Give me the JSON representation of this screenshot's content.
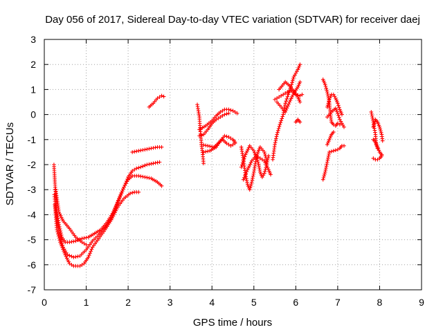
{
  "chart_data": {
    "type": "scatter",
    "title": "Day 056 of 2017, Sidereal Day-to-day VTEC variation (SDTVAR) for receiver daej",
    "xlabel": "GPS time / hours",
    "ylabel": "SDTVAR / TECUs",
    "xlim": [
      0,
      9
    ],
    "ylim": [
      -7,
      3
    ],
    "grid": true,
    "xticks": [
      "0",
      "1",
      "2",
      "3",
      "4",
      "5",
      "6",
      "7",
      "8",
      "9"
    ],
    "yticks": [
      "3",
      "2",
      "1",
      "0",
      "-1",
      "-2",
      "-3",
      "-4",
      "-5",
      "-6",
      "-7"
    ],
    "series": [
      {
        "name": "SDTVAR",
        "marker": "+",
        "color": "#ff0000",
        "segments": [
          [
            [
              0.23,
              -2.0
            ],
            [
              0.26,
              -2.9
            ],
            [
              0.3,
              -3.8
            ],
            [
              0.35,
              -4.4
            ],
            [
              0.42,
              -4.9
            ],
            [
              0.5,
              -5.1
            ],
            [
              0.6,
              -5.1
            ],
            [
              0.75,
              -5.05
            ],
            [
              0.9,
              -4.95
            ],
            [
              1.05,
              -4.9
            ],
            [
              1.2,
              -4.75
            ],
            [
              1.35,
              -4.6
            ],
            [
              1.5,
              -4.3
            ],
            [
              1.65,
              -3.9
            ],
            [
              1.8,
              -3.3
            ],
            [
              1.9,
              -2.9
            ],
            [
              2.0,
              -2.5
            ],
            [
              2.1,
              -2.25
            ],
            [
              2.2,
              -2.15
            ],
            [
              2.3,
              -2.1
            ],
            [
              2.45,
              -2.0
            ],
            [
              2.6,
              -1.95
            ],
            [
              2.75,
              -1.9
            ]
          ],
          [
            [
              0.24,
              -3.2
            ],
            [
              0.28,
              -3.9
            ],
            [
              0.35,
              -4.7
            ],
            [
              0.45,
              -5.3
            ],
            [
              0.55,
              -5.6
            ],
            [
              0.7,
              -5.7
            ],
            [
              0.85,
              -5.65
            ],
            [
              1.0,
              -5.4
            ],
            [
              1.15,
              -5.05
            ],
            [
              1.3,
              -4.8
            ],
            [
              1.45,
              -4.5
            ],
            [
              1.6,
              -4.1
            ],
            [
              1.75,
              -3.5
            ],
            [
              1.9,
              -2.9
            ],
            [
              2.0,
              -2.6
            ],
            [
              2.1,
              -2.45
            ],
            [
              2.25,
              -2.45
            ],
            [
              2.4,
              -2.5
            ],
            [
              2.55,
              -2.55
            ],
            [
              2.7,
              -2.7
            ],
            [
              2.8,
              -2.85
            ]
          ],
          [
            [
              0.25,
              -3.6
            ],
            [
              0.3,
              -4.6
            ],
            [
              0.38,
              -5.1
            ],
            [
              0.5,
              -5.6
            ],
            [
              0.6,
              -5.95
            ],
            [
              0.7,
              -6.05
            ],
            [
              0.85,
              -6.05
            ],
            [
              0.95,
              -5.95
            ],
            [
              1.05,
              -5.7
            ],
            [
              1.15,
              -5.3
            ],
            [
              1.3,
              -4.95
            ],
            [
              1.45,
              -4.6
            ],
            [
              1.6,
              -4.2
            ],
            [
              1.75,
              -3.7
            ],
            [
              1.9,
              -3.35
            ],
            [
              2.05,
              -3.15
            ],
            [
              2.15,
              -3.1
            ],
            [
              2.25,
              -3.1
            ]
          ],
          [
            [
              0.27,
              -3.0
            ],
            [
              0.35,
              -3.9
            ],
            [
              0.45,
              -4.25
            ],
            [
              0.6,
              -4.55
            ],
            [
              0.75,
              -4.9
            ],
            [
              0.9,
              -5.1
            ],
            [
              1.0,
              -5.2
            ]
          ],
          [
            [
              2.1,
              -1.5
            ],
            [
              2.25,
              -1.45
            ],
            [
              2.4,
              -1.4
            ],
            [
              2.55,
              -1.35
            ],
            [
              2.7,
              -1.3
            ],
            [
              2.8,
              -1.3
            ]
          ],
          [
            [
              2.5,
              0.3
            ],
            [
              2.6,
              0.45
            ],
            [
              2.7,
              0.65
            ],
            [
              2.8,
              0.75
            ],
            [
              2.85,
              0.72
            ]
          ],
          [
            [
              3.65,
              0.4
            ],
            [
              3.7,
              -0.1
            ],
            [
              3.72,
              -0.6
            ],
            [
              3.75,
              -1.2
            ],
            [
              3.78,
              -1.6
            ],
            [
              3.8,
              -1.95
            ]
          ],
          [
            [
              3.7,
              -0.6
            ],
            [
              3.85,
              -0.45
            ],
            [
              4.0,
              -0.25
            ],
            [
              4.1,
              -0.05
            ],
            [
              4.2,
              0.1
            ],
            [
              4.3,
              0.2
            ],
            [
              4.4,
              0.2
            ],
            [
              4.5,
              0.15
            ],
            [
              4.6,
              0.05
            ]
          ],
          [
            [
              3.7,
              -0.85
            ],
            [
              3.8,
              -0.8
            ],
            [
              3.9,
              -0.6
            ],
            [
              4.0,
              -0.35
            ],
            [
              4.1,
              -0.2
            ],
            [
              4.2,
              -0.1
            ],
            [
              4.3,
              0.0
            ],
            [
              4.4,
              0.05
            ]
          ],
          [
            [
              3.75,
              -1.2
            ],
            [
              3.9,
              -1.25
            ],
            [
              4.05,
              -1.3
            ],
            [
              4.15,
              -1.15
            ],
            [
              4.25,
              -1.0
            ],
            [
              4.35,
              -1.15
            ],
            [
              4.45,
              -1.25
            ],
            [
              4.55,
              -1.15
            ]
          ],
          [
            [
              3.8,
              -1.5
            ],
            [
              3.95,
              -1.45
            ],
            [
              4.1,
              -1.3
            ],
            [
              4.2,
              -1.05
            ],
            [
              4.3,
              -0.85
            ],
            [
              4.4,
              -0.9
            ],
            [
              4.5,
              -1.0
            ],
            [
              4.55,
              -1.1
            ]
          ],
          [
            [
              4.7,
              -1.3
            ],
            [
              4.75,
              -1.8
            ],
            [
              4.8,
              -2.4
            ],
            [
              4.85,
              -2.8
            ],
            [
              4.9,
              -3.0
            ],
            [
              4.95,
              -2.7
            ],
            [
              5.0,
              -2.3
            ],
            [
              5.05,
              -1.8
            ],
            [
              5.1,
              -1.5
            ],
            [
              5.15,
              -1.3
            ],
            [
              5.25,
              -1.5
            ],
            [
              5.3,
              -1.8
            ]
          ],
          [
            [
              4.7,
              -2.1
            ],
            [
              4.8,
              -1.6
            ],
            [
              4.9,
              -1.25
            ],
            [
              5.0,
              -1.45
            ],
            [
              5.1,
              -1.9
            ],
            [
              5.15,
              -2.3
            ],
            [
              5.2,
              -2.5
            ],
            [
              5.25,
              -2.35
            ],
            [
              5.3,
              -2.05
            ],
            [
              5.35,
              -1.65
            ]
          ],
          [
            [
              4.75,
              -2.6
            ],
            [
              4.85,
              -2.2
            ],
            [
              4.95,
              -1.85
            ],
            [
              5.05,
              -1.65
            ],
            [
              5.15,
              -1.75
            ],
            [
              5.25,
              -1.85
            ],
            [
              5.35,
              -2.2
            ],
            [
              5.4,
              -2.4
            ]
          ],
          [
            [
              5.45,
              -1.8
            ],
            [
              5.5,
              -1.2
            ],
            [
              5.55,
              -0.8
            ],
            [
              5.62,
              -0.4
            ],
            [
              5.7,
              0.0
            ],
            [
              5.75,
              0.45
            ],
            [
              5.82,
              0.8
            ],
            [
              5.9,
              1.2
            ],
            [
              5.95,
              1.5
            ],
            [
              6.05,
              1.8
            ],
            [
              6.1,
              2.0
            ]
          ],
          [
            [
              5.5,
              0.6
            ],
            [
              5.6,
              0.7
            ],
            [
              5.7,
              0.8
            ],
            [
              5.8,
              0.9
            ],
            [
              5.9,
              0.95
            ],
            [
              6.0,
              0.8
            ],
            [
              6.1,
              0.75
            ],
            [
              6.15,
              0.8
            ]
          ],
          [
            [
              5.55,
              0.5
            ],
            [
              5.65,
              0.3
            ],
            [
              5.75,
              0.1
            ],
            [
              5.85,
              0.5
            ],
            [
              5.95,
              0.85
            ],
            [
              6.05,
              1.1
            ],
            [
              6.1,
              1.3
            ]
          ],
          [
            [
              5.6,
              1.0
            ],
            [
              5.75,
              1.3
            ],
            [
              5.85,
              1.15
            ],
            [
              5.95,
              0.95
            ],
            [
              6.05,
              0.7
            ],
            [
              6.1,
              0.5
            ]
          ],
          [
            [
              6.0,
              -0.3
            ],
            [
              6.05,
              -0.2
            ],
            [
              6.1,
              -0.3
            ]
          ],
          [
            [
              6.65,
              1.4
            ],
            [
              6.7,
              1.2
            ],
            [
              6.75,
              0.9
            ],
            [
              6.8,
              0.5
            ],
            [
              6.82,
              0.1
            ],
            [
              6.85,
              -0.3
            ],
            [
              6.9,
              -0.4
            ],
            [
              6.95,
              -0.45
            ],
            [
              7.0,
              -0.35
            ],
            [
              7.05,
              -0.4
            ]
          ],
          [
            [
              6.65,
              -2.6
            ],
            [
              6.7,
              -2.3
            ],
            [
              6.75,
              -1.9
            ],
            [
              6.8,
              -1.5
            ],
            [
              6.9,
              -1.45
            ],
            [
              7.0,
              -1.4
            ],
            [
              7.05,
              -1.35
            ],
            [
              7.1,
              -1.25
            ],
            [
              7.15,
              -1.25
            ]
          ],
          [
            [
              6.75,
              0.3
            ],
            [
              6.8,
              0.6
            ],
            [
              6.85,
              0.8
            ],
            [
              6.9,
              0.8
            ],
            [
              6.95,
              0.65
            ],
            [
              7.0,
              0.45
            ],
            [
              7.05,
              0.2
            ],
            [
              7.1,
              0.0
            ]
          ],
          [
            [
              6.75,
              -0.1
            ],
            [
              6.85,
              0.1
            ],
            [
              6.95,
              0.25
            ],
            [
              7.0,
              0.05
            ],
            [
              7.05,
              -0.2
            ],
            [
              7.1,
              -0.35
            ],
            [
              7.15,
              -0.5
            ]
          ],
          [
            [
              6.75,
              -1.2
            ],
            [
              6.8,
              -1.0
            ],
            [
              6.85,
              -0.8
            ],
            [
              6.9,
              -0.7
            ]
          ],
          [
            [
              7.8,
              0.1
            ],
            [
              7.85,
              -0.3
            ],
            [
              7.9,
              -0.8
            ],
            [
              7.92,
              -1.2
            ],
            [
              7.95,
              -1.35
            ]
          ],
          [
            [
              7.85,
              -0.5
            ],
            [
              7.9,
              -0.2
            ],
            [
              7.95,
              -0.3
            ],
            [
              8.0,
              -0.5
            ],
            [
              8.05,
              -0.8
            ],
            [
              8.07,
              -1.05
            ]
          ],
          [
            [
              7.85,
              -1.0
            ],
            [
              7.9,
              -1.1
            ],
            [
              7.95,
              -1.3
            ],
            [
              8.0,
              -1.5
            ],
            [
              8.05,
              -1.6
            ]
          ],
          [
            [
              7.85,
              -1.75
            ],
            [
              7.9,
              -1.8
            ],
            [
              7.95,
              -1.8
            ],
            [
              8.0,
              -1.75
            ],
            [
              8.05,
              -1.65
            ]
          ]
        ]
      }
    ]
  },
  "colors": {
    "marker": "#ff0000",
    "axis": "#000000",
    "grid": "#a0a0a0",
    "background": "#ffffff"
  }
}
